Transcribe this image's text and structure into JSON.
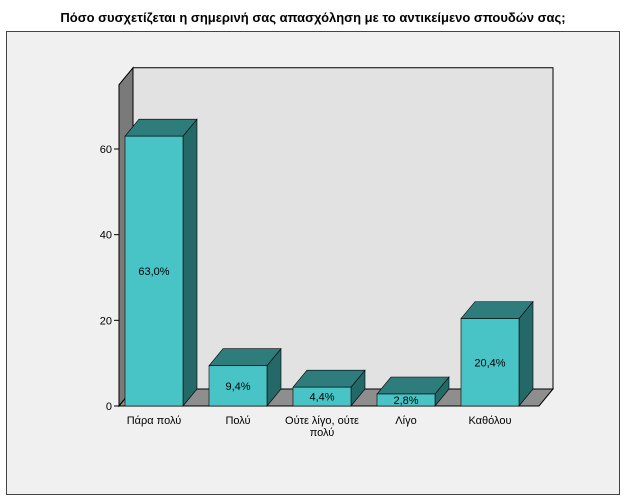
{
  "chart_data": {
    "type": "bar",
    "title": "Πόσο συσχετίζεται η σημερινή σας απασχόληση με το αντικείμενο σπουδών σας;",
    "xlabel": "",
    "ylabel": "",
    "categories": [
      "Πάρα πολύ",
      "Πολύ",
      "Ούτε λίγο, ούτε πολύ",
      "Λίγο",
      "Καθόλου"
    ],
    "values": [
      63.0,
      9.4,
      4.4,
      2.8,
      20.4
    ],
    "value_labels": [
      "63,0%",
      "9,4%",
      "4,4%",
      "2,8%",
      "20,4%"
    ],
    "yticks": [
      "0",
      "20",
      "40",
      "60"
    ],
    "ylim": [
      0,
      75
    ],
    "grid": false,
    "legend": "none",
    "style": "3d",
    "colors": {
      "bar_front": "#48c4c6",
      "bar_top": "#2e7c7c",
      "bar_side": "#256868",
      "back_wall": "#e2e2e2",
      "left_wall": "#7a7a7a",
      "floor": "#8e8e8e",
      "frame_bg": "#f0f0f0"
    }
  }
}
